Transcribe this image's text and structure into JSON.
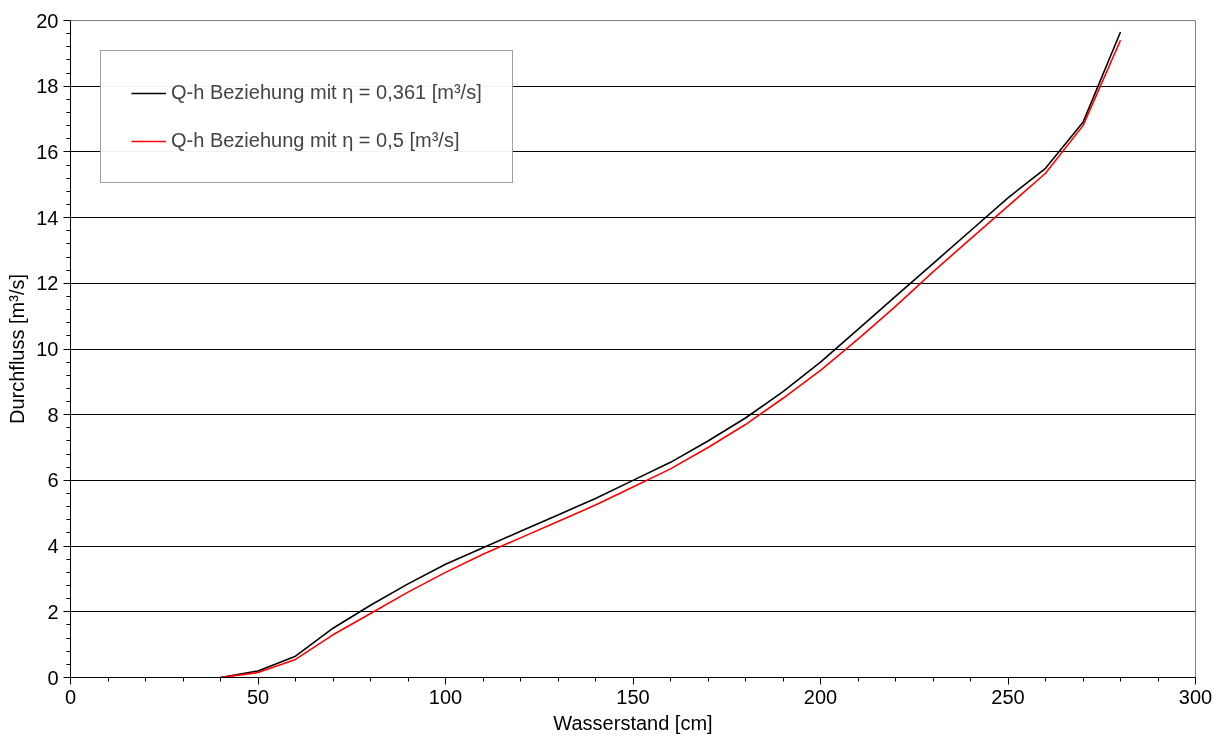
{
  "chart_data": {
    "type": "line",
    "xlabel": "Wasserstand [cm]",
    "ylabel": "Durchfluss [m³/s]",
    "x": [
      40,
      50,
      60,
      70,
      80,
      90,
      100,
      110,
      120,
      130,
      140,
      150,
      160,
      170,
      180,
      190,
      200,
      210,
      220,
      230,
      240,
      250,
      260,
      270,
      280
    ],
    "series": [
      {
        "name": "Q-h Beziehung mit η = 0,361 [m³/s]",
        "color": "#000000",
        "values": [
          0,
          0.2,
          0.65,
          1.5,
          2.2,
          2.85,
          3.45,
          3.95,
          4.45,
          4.95,
          5.45,
          6.0,
          6.55,
          7.2,
          7.9,
          8.7,
          9.6,
          10.6,
          11.6,
          12.6,
          13.6,
          14.6,
          15.5,
          16.9,
          19.65
        ]
      },
      {
        "name": "Q-h Beziehung mit η = 0,5 [m³/s]",
        "color": "#ff0000",
        "values": [
          0,
          0.15,
          0.55,
          1.3,
          1.95,
          2.6,
          3.2,
          3.75,
          4.25,
          4.75,
          5.25,
          5.8,
          6.35,
          7.0,
          7.7,
          8.5,
          9.35,
          10.3,
          11.3,
          12.35,
          13.35,
          14.35,
          15.35,
          16.8,
          19.4
        ]
      }
    ],
    "xlim": [
      0,
      300
    ],
    "ylim": [
      0,
      20
    ],
    "xticks": [
      0,
      50,
      100,
      150,
      200,
      250,
      300
    ],
    "yticks": [
      0,
      2,
      4,
      6,
      8,
      10,
      12,
      14,
      16,
      18,
      20
    ],
    "grid": "y",
    "legend": "top left",
    "marker": "none",
    "line_style": "solid"
  }
}
